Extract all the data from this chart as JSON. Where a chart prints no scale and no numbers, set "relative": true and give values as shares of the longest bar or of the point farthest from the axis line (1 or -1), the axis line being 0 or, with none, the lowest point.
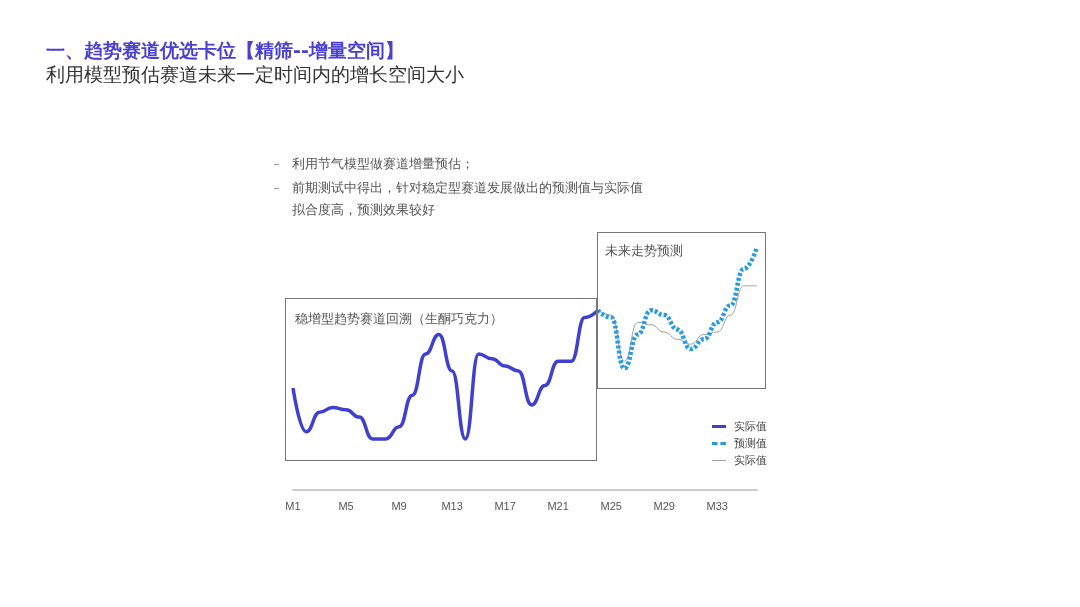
{
  "chart_data": {
    "type": "line",
    "title": "一、趋势赛道优选卡位【精筛--增量空间】",
    "subtitle": "利用模型预估赛道未来一定时间内的增长空间大小",
    "annotations": [
      "利用节气模型做赛道增量预估；",
      "前期测试中得出，针对稳定型赛道发展做出的预测值与实际值拟合度高，预测效果较好",
      "稳增型趋势赛道回溯（生酮巧克力）",
      "未来走势预测"
    ],
    "categories": [
      "M1",
      null,
      null,
      null,
      "M5",
      null,
      null,
      null,
      "M9",
      null,
      null,
      null,
      "M13",
      null,
      null,
      null,
      "M17",
      null,
      null,
      null,
      "M21",
      null,
      null,
      null,
      "M25",
      null,
      null,
      null,
      "M29",
      null,
      null,
      null,
      "M33",
      null,
      null,
      null
    ],
    "relative": true,
    "legend": "bottom right",
    "marker": "none",
    "grid": false,
    "series": [
      {
        "name": "实际值",
        "color": "#4040d0",
        "line_style": "solid",
        "values": [
          0.42,
          0.24,
          0.32,
          0.34,
          0.33,
          0.3,
          0.21,
          0.21,
          0.26,
          0.39,
          0.56,
          0.64,
          0.49,
          0.21,
          0.56,
          0.54,
          0.51,
          0.49,
          0.35,
          0.43,
          0.53,
          0.53,
          0.71,
          0.74,
          null,
          null,
          null,
          null,
          null,
          null,
          null,
          null,
          null,
          null,
          null,
          null
        ]
      },
      {
        "name": "预测值",
        "color": "#2a9be0",
        "line_style": "dashed",
        "values": [
          null,
          null,
          null,
          null,
          null,
          null,
          null,
          null,
          null,
          null,
          null,
          null,
          null,
          null,
          null,
          null,
          null,
          null,
          null,
          null,
          null,
          null,
          null,
          0.74,
          0.71,
          0.5,
          0.64,
          0.74,
          0.72,
          0.66,
          0.58,
          0.62,
          0.69,
          0.76,
          0.91,
          1
        ]
      },
      {
        "name": "实际值",
        "color": "#a0a0a0",
        "line_style": "solid",
        "values": [
          null,
          null,
          null,
          null,
          null,
          null,
          null,
          null,
          null,
          null,
          null,
          null,
          null,
          null,
          null,
          null,
          null,
          null,
          null,
          null,
          null,
          null,
          null,
          0.74,
          0.72,
          0.53,
          0.69,
          0.68,
          0.65,
          0.62,
          0.6,
          0.64,
          0.65,
          0.72,
          0.84,
          0.84
        ]
      }
    ]
  }
}
